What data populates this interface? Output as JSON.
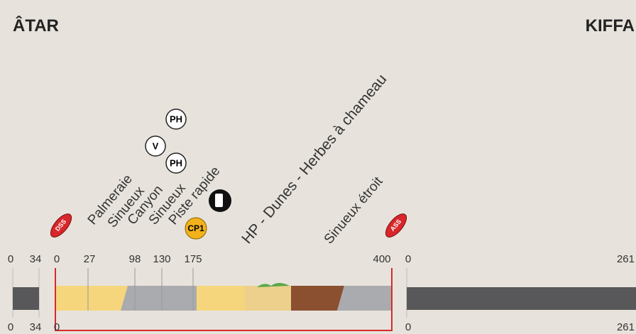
{
  "header": {
    "start": "ÂTAR",
    "end": "KIFFA"
  },
  "liaison_start": {
    "top": [
      0,
      34
    ],
    "bottom": [
      0,
      34
    ]
  },
  "special": {
    "start_badge": "DSS",
    "end_badge": "ASS",
    "kms": [
      0,
      27,
      98,
      130,
      175,
      400
    ],
    "bottom": 0,
    "terrain": [
      "Palmeraie",
      "Sinueux",
      "Canyon",
      "Sinueux",
      "Piste rapide",
      "HP - Dunes - Herbes à chameau",
      "Sinueux étroit"
    ],
    "icons": [
      "PH",
      "V",
      "PH",
      "CP1"
    ]
  },
  "liaison_end": {
    "top": [
      0,
      261
    ],
    "bottom": [
      0,
      261
    ]
  }
}
